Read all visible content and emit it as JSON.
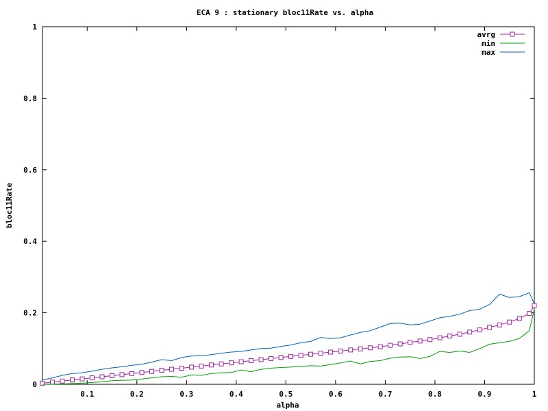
{
  "chart_data": {
    "type": "line",
    "title": "ECA 9 : stationary bloc11Rate vs. alpha",
    "xlabel": "alpha",
    "ylabel": "bloc11Rate",
    "xlim": [
      0.01,
      1.0
    ],
    "ylim": [
      0,
      1
    ],
    "xticks": [
      0.1,
      0.2,
      0.3,
      0.4,
      0.5,
      0.6,
      0.7,
      0.8,
      0.9,
      1.0
    ],
    "xtick_labels": [
      "0.1",
      "0.2",
      "0.3",
      "0.4",
      "0.5",
      "0.6",
      "0.7",
      "0.8",
      "0.9",
      "1"
    ],
    "yticks": [
      0,
      0.2,
      0.4,
      0.6,
      0.8,
      1.0
    ],
    "ytick_labels": [
      "0",
      "0.2",
      "0.4",
      "0.6",
      "0.8",
      "1"
    ],
    "grid": false,
    "legend_position": "top-right",
    "series": [
      {
        "name": "avrg",
        "color": "#a020a0",
        "marker": "square",
        "x": [
          0.01,
          0.03,
          0.05,
          0.07,
          0.09,
          0.11,
          0.13,
          0.15,
          0.17,
          0.19,
          0.21,
          0.23,
          0.25,
          0.27,
          0.29,
          0.31,
          0.33,
          0.35,
          0.37,
          0.39,
          0.41,
          0.43,
          0.45,
          0.47,
          0.49,
          0.51,
          0.53,
          0.55,
          0.57,
          0.59,
          0.61,
          0.63,
          0.65,
          0.67,
          0.69,
          0.71,
          0.73,
          0.75,
          0.77,
          0.79,
          0.81,
          0.83,
          0.85,
          0.87,
          0.89,
          0.91,
          0.93,
          0.95,
          0.97,
          0.99,
          1.0
        ],
        "y": [
          0.003,
          0.006,
          0.009,
          0.012,
          0.015,
          0.018,
          0.021,
          0.024,
          0.027,
          0.03,
          0.033,
          0.036,
          0.039,
          0.042,
          0.045,
          0.048,
          0.051,
          0.054,
          0.057,
          0.06,
          0.063,
          0.066,
          0.069,
          0.072,
          0.075,
          0.078,
          0.081,
          0.084,
          0.087,
          0.09,
          0.093,
          0.096,
          0.099,
          0.102,
          0.105,
          0.109,
          0.113,
          0.117,
          0.121,
          0.125,
          0.13,
          0.135,
          0.14,
          0.146,
          0.152,
          0.159,
          0.166,
          0.174,
          0.184,
          0.198,
          0.22
        ]
      },
      {
        "name": "min",
        "color": "#00a000",
        "marker": "none",
        "x": [
          0.01,
          0.03,
          0.05,
          0.07,
          0.09,
          0.11,
          0.13,
          0.15,
          0.17,
          0.19,
          0.21,
          0.23,
          0.25,
          0.27,
          0.29,
          0.31,
          0.33,
          0.35,
          0.37,
          0.39,
          0.41,
          0.43,
          0.45,
          0.47,
          0.49,
          0.51,
          0.53,
          0.55,
          0.57,
          0.59,
          0.61,
          0.63,
          0.65,
          0.67,
          0.69,
          0.71,
          0.73,
          0.75,
          0.77,
          0.79,
          0.81,
          0.83,
          0.85,
          0.87,
          0.89,
          0.91,
          0.93,
          0.95,
          0.97,
          0.99,
          1.0
        ],
        "y": [
          0.0,
          0.001,
          0.001,
          0.002,
          0.003,
          0.005,
          0.007,
          0.01,
          0.011,
          0.012,
          0.015,
          0.018,
          0.021,
          0.022,
          0.02,
          0.026,
          0.025,
          0.03,
          0.032,
          0.033,
          0.04,
          0.035,
          0.042,
          0.045,
          0.047,
          0.048,
          0.05,
          0.052,
          0.051,
          0.055,
          0.06,
          0.065,
          0.057,
          0.064,
          0.066,
          0.073,
          0.076,
          0.077,
          0.072,
          0.078,
          0.092,
          0.089,
          0.093,
          0.089,
          0.1,
          0.112,
          0.116,
          0.12,
          0.128,
          0.15,
          0.21
        ]
      },
      {
        "name": "max",
        "color": "#0060c0",
        "marker": "none",
        "x": [
          0.01,
          0.03,
          0.05,
          0.07,
          0.09,
          0.11,
          0.13,
          0.15,
          0.17,
          0.19,
          0.21,
          0.23,
          0.25,
          0.27,
          0.29,
          0.31,
          0.33,
          0.35,
          0.37,
          0.39,
          0.41,
          0.43,
          0.45,
          0.47,
          0.49,
          0.51,
          0.53,
          0.55,
          0.57,
          0.59,
          0.61,
          0.63,
          0.65,
          0.67,
          0.69,
          0.71,
          0.73,
          0.75,
          0.77,
          0.79,
          0.81,
          0.83,
          0.85,
          0.87,
          0.89,
          0.91,
          0.93,
          0.95,
          0.97,
          0.99,
          1.0
        ],
        "y": [
          0.012,
          0.018,
          0.025,
          0.03,
          0.032,
          0.037,
          0.042,
          0.046,
          0.049,
          0.053,
          0.056,
          0.062,
          0.069,
          0.066,
          0.075,
          0.079,
          0.08,
          0.083,
          0.087,
          0.09,
          0.092,
          0.096,
          0.1,
          0.101,
          0.106,
          0.11,
          0.116,
          0.12,
          0.131,
          0.128,
          0.13,
          0.138,
          0.145,
          0.15,
          0.16,
          0.17,
          0.171,
          0.166,
          0.168,
          0.177,
          0.186,
          0.19,
          0.196,
          0.206,
          0.21,
          0.223,
          0.252,
          0.243,
          0.245,
          0.256,
          0.225
        ]
      }
    ]
  }
}
